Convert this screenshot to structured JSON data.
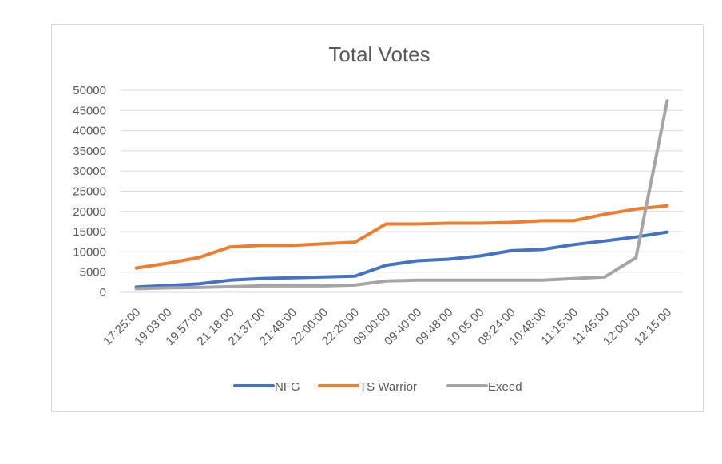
{
  "chart_data": {
    "type": "line",
    "title": "Total Votes",
    "xlabel": "",
    "ylabel": "",
    "ylim": [
      0,
      50000
    ],
    "yticks": [
      0,
      5000,
      10000,
      15000,
      20000,
      25000,
      30000,
      35000,
      40000,
      45000,
      50000
    ],
    "categories": [
      "17:25:00",
      "19:03:00",
      "19:57:00",
      "21:18:00",
      "21:37:00",
      "21:49:00",
      "22:00:00",
      "22:20:00",
      "09:00:00",
      "09:40:00",
      "09:48:00",
      "10:05:00",
      "08:24:00",
      "10:48:00",
      "11:15:00",
      "11:45:00",
      "12:00:00",
      "12:15:00"
    ],
    "grid": true,
    "legend": "bottom",
    "series": [
      {
        "name": "NFG",
        "color": "#4472C4",
        "values": [
          1300,
          1700,
          2100,
          3000,
          3400,
          3600,
          3800,
          4000,
          6700,
          7800,
          8200,
          9000,
          10300,
          10600,
          11800,
          12700,
          13700,
          14900
        ]
      },
      {
        "name": "TS Warrior",
        "color": "#ED7D31",
        "values": [
          6000,
          7200,
          8600,
          11200,
          11600,
          11600,
          12000,
          12400,
          16900,
          16900,
          17100,
          17100,
          17300,
          17700,
          17700,
          19300,
          20600,
          21400
        ]
      },
      {
        "name": "Exeed",
        "color": "#A5A5A5",
        "values": [
          900,
          1100,
          1200,
          1400,
          1600,
          1600,
          1600,
          1800,
          2800,
          3000,
          3000,
          3000,
          3000,
          3000,
          3400,
          3800,
          8600,
          47400
        ]
      }
    ]
  }
}
